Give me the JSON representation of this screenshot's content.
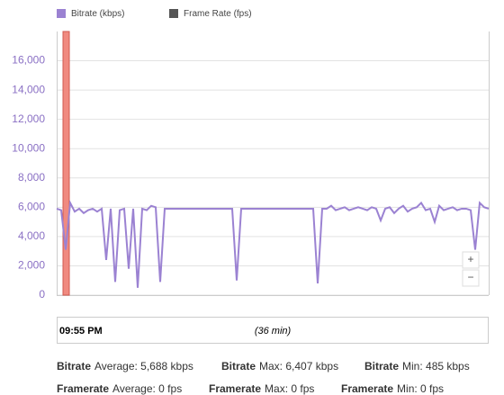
{
  "chart_data": {
    "type": "line",
    "series": [
      {
        "name": "Bitrate (kbps)",
        "color": "#9b82d2",
        "values": [
          5900,
          5800,
          3100,
          6300,
          5700,
          5900,
          5600,
          5800,
          5900,
          5700,
          5900,
          2400,
          5900,
          900,
          5800,
          5900,
          1800,
          5900,
          500,
          5900,
          5800,
          6100,
          6000,
          900,
          5900,
          5900,
          5900,
          5900,
          5900,
          5900,
          5900,
          5900,
          5900,
          5900,
          5900,
          5900,
          5900,
          5900,
          5900,
          5900,
          1000,
          5900,
          5900,
          5900,
          5900,
          5900,
          5900,
          5900,
          5900,
          5900,
          5900,
          5900,
          5900,
          5900,
          5900,
          5900,
          5900,
          5900,
          800,
          5900,
          5900,
          6100,
          5800,
          5900,
          6000,
          5800,
          5900,
          6000,
          5900,
          5800,
          6000,
          5900,
          5100,
          5900,
          6000,
          5600,
          5900,
          6100,
          5700,
          5900,
          6000,
          6300,
          5800,
          5900,
          5000,
          6100,
          5800,
          5900,
          6000,
          5800,
          5900,
          5900,
          5800,
          3100,
          6300,
          6000,
          5900
        ]
      },
      {
        "name": "Frame Rate (fps)",
        "color": "#555555"
      }
    ],
    "ylim": [
      0,
      18000
    ],
    "yticks": [
      0,
      {
        "value": 2000,
        "label": "2,000"
      },
      {
        "value": 4000,
        "label": "4,000"
      },
      {
        "value": 6000,
        "label": "6,000"
      },
      {
        "value": 8000,
        "label": "8,000"
      },
      {
        "value": 10000,
        "label": "10,000"
      },
      {
        "value": 12000,
        "label": "12,000"
      },
      {
        "value": 14000,
        "label": "14,000"
      },
      {
        "value": 16000,
        "label": "16,000"
      }
    ],
    "grid": true,
    "time_label": "09:55 PM",
    "duration_label": "(36 min)"
  },
  "stats": [
    {
      "label": "Bitrate",
      "text": "Average: 5,688 kbps"
    },
    {
      "label": "Bitrate",
      "text": "Max: 6,407 kbps"
    },
    {
      "label": "Bitrate",
      "text": "Min: 485 kbps"
    },
    {
      "label": "Framerate",
      "text": "Average: 0 fps"
    },
    {
      "label": "Framerate",
      "text": "Max: 0 fps"
    },
    {
      "label": "Framerate",
      "text": "Min: 0 fps"
    }
  ]
}
